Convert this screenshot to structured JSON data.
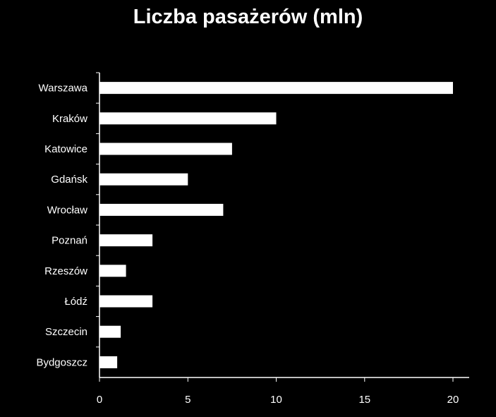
{
  "chart_data": {
    "type": "bar",
    "orientation": "horizontal",
    "title": "Liczba pasażerów (mln)",
    "categories": [
      "Warszawa",
      "Kraków",
      "Katowice",
      "Gdańsk",
      "Wrocław",
      "Poznań",
      "Rzeszów",
      "Łódź",
      "Szczecin",
      "Bydgoszcz"
    ],
    "values": [
      20,
      10,
      7.5,
      5,
      7,
      3,
      1.5,
      3,
      1.2,
      1
    ],
    "xlim": [
      0,
      20
    ],
    "xticks": [
      0,
      5,
      10,
      15,
      20
    ],
    "xlabel": "",
    "ylabel": "",
    "grid": false,
    "legend": "none",
    "colors": {
      "background": "#000000",
      "bar": "#ffffff",
      "text": "#ffffff",
      "axis": "#ffffff"
    }
  }
}
